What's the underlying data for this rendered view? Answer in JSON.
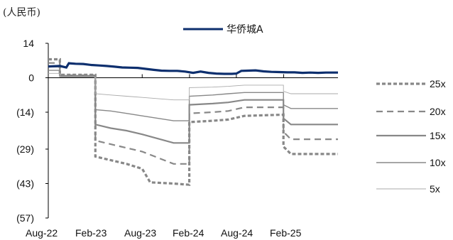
{
  "unit_label": "(人民币)",
  "chart_data": {
    "type": "line",
    "title": "",
    "xlabel": "",
    "ylabel": "",
    "ylim": [
      -57,
      14
    ],
    "y_ticks": [
      14,
      0,
      -14,
      -29,
      -43,
      -57
    ],
    "y_tick_labels": [
      "14",
      "0",
      "(14)",
      "(29)",
      "(43)",
      "(57)"
    ],
    "x_range": [
      "2022-08-01",
      "2025-08-31"
    ],
    "x_ticks": [
      "2022-08-01",
      "2023-02-01",
      "2023-08-01",
      "2024-02-01",
      "2024-08-01",
      "2025-02-01"
    ],
    "x_tick_labels": [
      "Aug-22",
      "Feb-23",
      "Aug-23",
      "Feb-24",
      "Aug-24",
      "Feb-25"
    ],
    "grid": false,
    "legend_position": "top-center and right",
    "series": [
      {
        "name": "华侨城A",
        "color": "#0d2f6e",
        "style": "solid-thick",
        "points": [
          [
            "2022-08-01",
            4.6
          ],
          [
            "2022-09-15",
            4.8
          ],
          [
            "2022-10-10",
            4.2
          ],
          [
            "2022-10-20",
            5.9
          ],
          [
            "2022-11-15",
            5.7
          ],
          [
            "2022-12-15",
            5.6
          ],
          [
            "2023-01-15",
            5.2
          ],
          [
            "2023-02-15",
            5.0
          ],
          [
            "2023-03-15",
            4.8
          ],
          [
            "2023-04-15",
            4.5
          ],
          [
            "2023-05-15",
            4.2
          ],
          [
            "2023-06-15",
            4.1
          ],
          [
            "2023-07-15",
            4.0
          ],
          [
            "2023-08-15",
            3.6
          ],
          [
            "2023-09-15",
            3.2
          ],
          [
            "2023-10-15",
            2.9
          ],
          [
            "2023-11-15",
            2.8
          ],
          [
            "2023-12-15",
            2.8
          ],
          [
            "2024-01-15",
            2.5
          ],
          [
            "2024-02-15",
            2.0
          ],
          [
            "2024-03-15",
            2.5
          ],
          [
            "2024-04-15",
            2.0
          ],
          [
            "2024-05-15",
            1.7
          ],
          [
            "2024-06-15",
            1.6
          ],
          [
            "2024-07-15",
            1.6
          ],
          [
            "2024-08-01",
            1.7
          ],
          [
            "2024-08-20",
            2.8
          ],
          [
            "2024-09-15",
            2.9
          ],
          [
            "2024-10-15",
            3.0
          ],
          [
            "2024-11-15",
            2.6
          ],
          [
            "2024-12-15",
            2.4
          ],
          [
            "2025-01-15",
            2.3
          ],
          [
            "2025-02-15",
            2.2
          ],
          [
            "2025-03-15",
            2.2
          ],
          [
            "2025-04-15",
            2.0
          ],
          [
            "2025-05-15",
            2.1
          ],
          [
            "2025-06-15",
            2.0
          ],
          [
            "2025-07-15",
            2.1
          ],
          [
            "2025-08-31",
            2.1
          ]
        ]
      },
      {
        "name": "25x",
        "color": "#888888",
        "style": "dotted-thick",
        "points": [
          [
            "2022-08-01",
            7.5
          ],
          [
            "2022-09-15",
            7.5
          ],
          [
            "2022-09-15",
            1.2
          ],
          [
            "2023-01-31",
            1.2
          ],
          [
            "2023-01-31",
            -32.0
          ],
          [
            "2023-04-01",
            -33.5
          ],
          [
            "2023-06-01",
            -35.0
          ],
          [
            "2023-08-01",
            -37.0
          ],
          [
            "2023-09-01",
            -42.5
          ],
          [
            "2023-12-01",
            -43.0
          ],
          [
            "2024-01-31",
            -43.5
          ],
          [
            "2024-01-31",
            -18.0
          ],
          [
            "2024-05-01",
            -17.5
          ],
          [
            "2024-07-01",
            -17.0
          ],
          [
            "2024-09-01",
            -15.5
          ],
          [
            "2025-01-31",
            -15.0
          ],
          [
            "2025-01-31",
            -28.0
          ],
          [
            "2025-03-01",
            -31.0
          ],
          [
            "2025-08-31",
            -31.0
          ]
        ]
      },
      {
        "name": "20x",
        "color": "#888888",
        "style": "dashed",
        "points": [
          [
            "2022-08-01",
            6.0
          ],
          [
            "2022-09-15",
            6.0
          ],
          [
            "2022-09-15",
            1.0
          ],
          [
            "2023-01-31",
            1.0
          ],
          [
            "2023-01-31",
            -25.5
          ],
          [
            "2023-04-01",
            -27.0
          ],
          [
            "2023-06-01",
            -28.5
          ],
          [
            "2023-08-01",
            -30.0
          ],
          [
            "2023-12-01",
            -35.0
          ],
          [
            "2024-01-31",
            -35.0
          ],
          [
            "2024-01-31",
            -14.5
          ],
          [
            "2024-05-01",
            -14.0
          ],
          [
            "2024-07-01",
            -13.5
          ],
          [
            "2024-09-01",
            -12.0
          ],
          [
            "2025-01-31",
            -12.0
          ],
          [
            "2025-01-31",
            -22.0
          ],
          [
            "2025-03-01",
            -25.0
          ],
          [
            "2025-08-31",
            -25.0
          ]
        ]
      },
      {
        "name": "15x",
        "color": "#888888",
        "style": "solid-medium",
        "points": [
          [
            "2022-08-01",
            4.5
          ],
          [
            "2022-09-15",
            4.5
          ],
          [
            "2022-09-15",
            0.8
          ],
          [
            "2023-01-31",
            0.8
          ],
          [
            "2023-01-31",
            -19.0
          ],
          [
            "2023-04-01",
            -20.5
          ],
          [
            "2023-06-01",
            -21.5
          ],
          [
            "2023-08-01",
            -23.0
          ],
          [
            "2023-12-01",
            -26.5
          ],
          [
            "2024-01-31",
            -26.5
          ],
          [
            "2024-01-31",
            -11.0
          ],
          [
            "2024-05-01",
            -10.5
          ],
          [
            "2024-07-01",
            -10.0
          ],
          [
            "2024-09-01",
            -9.0
          ],
          [
            "2025-01-31",
            -9.0
          ],
          [
            "2025-01-31",
            -16.5
          ],
          [
            "2025-03-01",
            -19.0
          ],
          [
            "2025-08-31",
            -19.0
          ]
        ]
      },
      {
        "name": "10x",
        "color": "#888888",
        "style": "solid-thin",
        "points": [
          [
            "2022-08-01",
            3.0
          ],
          [
            "2022-09-15",
            3.0
          ],
          [
            "2022-09-15",
            0.5
          ],
          [
            "2023-01-31",
            0.5
          ],
          [
            "2023-01-31",
            -13.0
          ],
          [
            "2023-04-01",
            -13.5
          ],
          [
            "2023-06-01",
            -14.5
          ],
          [
            "2023-08-01",
            -15.5
          ],
          [
            "2023-12-01",
            -17.5
          ],
          [
            "2024-01-31",
            -17.5
          ],
          [
            "2024-01-31",
            -7.5
          ],
          [
            "2024-05-01",
            -7.0
          ],
          [
            "2024-07-01",
            -6.5
          ],
          [
            "2024-09-01",
            -6.0
          ],
          [
            "2025-01-31",
            -6.0
          ],
          [
            "2025-01-31",
            -11.0
          ],
          [
            "2025-03-01",
            -12.5
          ],
          [
            "2025-08-31",
            -12.5
          ]
        ]
      },
      {
        "name": "5x",
        "color": "#aaaaaa",
        "style": "solid-hair",
        "points": [
          [
            "2022-08-01",
            1.8
          ],
          [
            "2022-09-15",
            1.8
          ],
          [
            "2022-09-15",
            0.3
          ],
          [
            "2023-01-31",
            0.3
          ],
          [
            "2023-01-31",
            -6.5
          ],
          [
            "2023-04-01",
            -7.0
          ],
          [
            "2023-06-01",
            -7.5
          ],
          [
            "2023-08-01",
            -8.0
          ],
          [
            "2023-12-01",
            -9.0
          ],
          [
            "2024-01-31",
            -9.0
          ],
          [
            "2024-01-31",
            -4.0
          ],
          [
            "2024-05-01",
            -3.8
          ],
          [
            "2024-07-01",
            -3.5
          ],
          [
            "2024-09-01",
            -3.0
          ],
          [
            "2025-01-31",
            -3.0
          ],
          [
            "2025-01-31",
            -5.5
          ],
          [
            "2025-03-01",
            -6.5
          ],
          [
            "2025-08-31",
            -6.5
          ]
        ]
      }
    ]
  }
}
